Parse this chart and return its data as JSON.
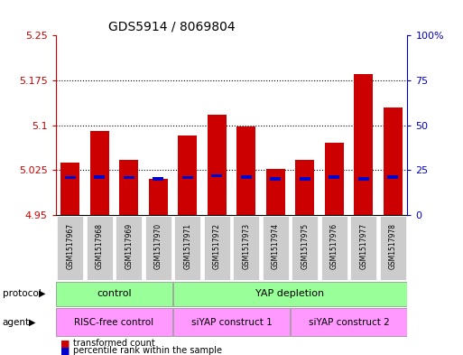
{
  "title": "GDS5914 / 8069804",
  "samples": [
    "GSM1517967",
    "GSM1517968",
    "GSM1517969",
    "GSM1517970",
    "GSM1517971",
    "GSM1517972",
    "GSM1517973",
    "GSM1517974",
    "GSM1517975",
    "GSM1517976",
    "GSM1517977",
    "GSM1517978"
  ],
  "transformed_counts": [
    5.038,
    5.09,
    5.042,
    5.01,
    5.083,
    5.118,
    5.098,
    5.026,
    5.042,
    5.07,
    5.185,
    5.13
  ],
  "percentile_values": [
    5.012,
    5.013,
    5.012,
    5.01,
    5.012,
    5.015,
    5.013,
    5.01,
    5.01,
    5.013,
    5.01,
    5.013
  ],
  "bar_bottom": 4.95,
  "ylim": [
    4.95,
    5.25
  ],
  "yticks": [
    4.95,
    5.025,
    5.1,
    5.175,
    5.25
  ],
  "ytick_labels": [
    "4.95",
    "5.025",
    "5.1",
    "5.175",
    "5.25"
  ],
  "right_yticks": [
    0,
    25,
    50,
    75,
    100
  ],
  "right_ylim": [
    0,
    100
  ],
  "bar_color": "#cc0000",
  "percentile_color": "#0000cc",
  "bar_width": 0.65,
  "protocol_color": "#99ff99",
  "agent_color": "#ff99ff",
  "legend_red": "transformed count",
  "legend_blue": "percentile rank within the sample",
  "background_color": "#ffffff",
  "title_fontsize": 10,
  "axis_label_color_left": "#cc0000",
  "axis_label_color_right": "#0000cc",
  "xtick_bg": "#cccccc"
}
